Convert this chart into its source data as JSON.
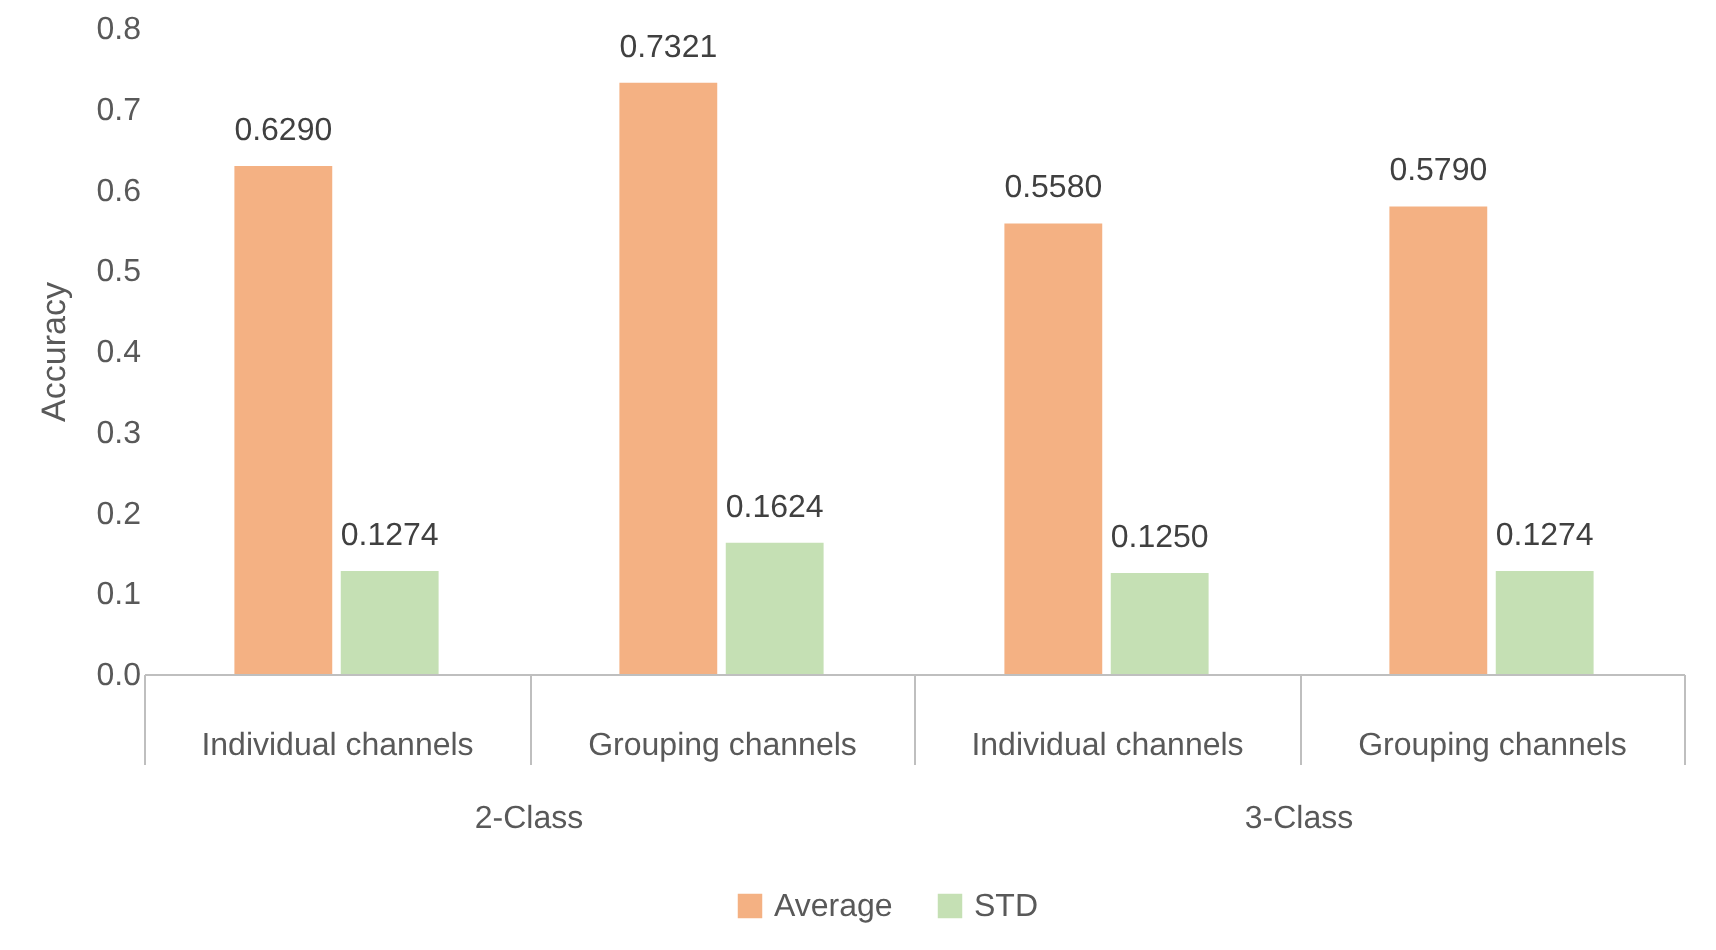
{
  "chart_data": {
    "type": "bar",
    "ylabel": "Accuracy",
    "categories": [
      "Individual channels",
      "Grouping channels",
      "Individual channels",
      "Grouping channels"
    ],
    "series": [
      {
        "name": "Average",
        "color": "#f4b183",
        "values": [
          0.629,
          0.7321,
          0.558,
          0.579
        ],
        "value_labels": [
          "0.6290",
          "0.7321",
          "0.5580",
          "0.5790"
        ]
      },
      {
        "name": "STD",
        "color": "#c5e0b4",
        "values": [
          0.1274,
          0.1624,
          0.125,
          0.1274
        ],
        "value_labels": [
          "0.1274",
          "0.1624",
          "0.1250",
          "0.1274"
        ]
      }
    ],
    "annotations": [
      "2-Class",
      "3-Class"
    ],
    "ylim": [
      0,
      0.8
    ],
    "yticks": [
      {
        "value": 0,
        "label": "0.0"
      },
      {
        "value": 0.1,
        "label": "0.1"
      },
      {
        "value": 0.2,
        "label": "0.2"
      },
      {
        "value": 0.3,
        "label": "0.3"
      },
      {
        "value": 0.4,
        "label": "0.4"
      },
      {
        "value": 0.5,
        "label": "0.5"
      },
      {
        "value": 0.6,
        "label": "0.6"
      },
      {
        "value": 0.7,
        "label": "0.7"
      },
      {
        "value": 0.8,
        "label": "0.8"
      }
    ],
    "grid": false,
    "legend": "bottom"
  }
}
